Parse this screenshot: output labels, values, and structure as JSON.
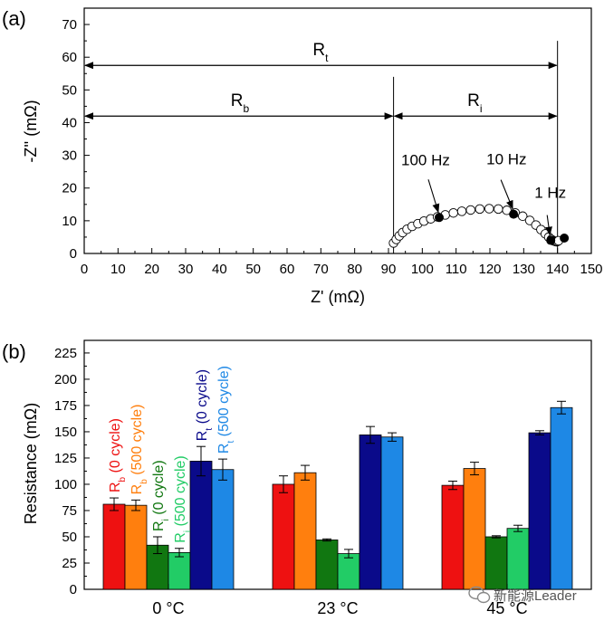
{
  "chart_data": [
    {
      "panel": "(a)",
      "type": "scatter",
      "xlabel": "Z' (mΩ)",
      "ylabel": "-Z'' (mΩ)",
      "xlim": [
        0,
        150
      ],
      "ylim": [
        0,
        75
      ],
      "xticks": [
        0,
        10,
        20,
        30,
        40,
        50,
        60,
        70,
        80,
        90,
        100,
        110,
        120,
        130,
        140,
        150
      ],
      "yticks": [
        0,
        10,
        20,
        30,
        40,
        50,
        60,
        70
      ],
      "series": [
        {
          "x": [
            91.5,
            92.3,
            93.2,
            94.2,
            95.5,
            97,
            98.7,
            100.5,
            102.5,
            104.5,
            106.8,
            109.2,
            111.7,
            114.3,
            117,
            119.8,
            122.5,
            125,
            127.5,
            129.7,
            131.8,
            133.6,
            135.1,
            136.4,
            137.4,
            138.2,
            138.8,
            139.3,
            139.7,
            140.0,
            140.3
          ],
          "y": [
            3.2,
            4.3,
            5.4,
            6.4,
            7.4,
            8.3,
            9.1,
            9.9,
            10.6,
            11.2,
            11.8,
            12.4,
            12.9,
            13.3,
            13.6,
            13.7,
            13.6,
            13.2,
            12.4,
            11.4,
            10.1,
            8.7,
            7.3,
            6.0,
            5.0,
            4.3,
            3.9,
            3.7,
            3.6,
            3.7,
            3.9
          ]
        }
      ],
      "highlights": [
        {
          "label": "100 Hz",
          "x": 105,
          "y": 11
        },
        {
          "label": "10 Hz",
          "x": 127,
          "y": 12
        },
        {
          "label": "1 Hz",
          "x": 138,
          "y": 4
        },
        {
          "label": "",
          "x": 142,
          "y": 4.7
        }
      ],
      "annotations": {
        "Rt": {
          "sym": "R",
          "sub": "t",
          "x_from": 0,
          "x_to": 140,
          "y": 57.5
        },
        "Rb": {
          "sym": "R",
          "sub": "b",
          "x_from": 0,
          "x_to": 91.5,
          "y": 42
        },
        "Ri": {
          "sym": "R",
          "sub": "i",
          "x_from": 91.5,
          "x_to": 140,
          "y": 42
        },
        "vlines": [
          91.5,
          140
        ]
      }
    },
    {
      "panel": "(b)",
      "type": "bar",
      "ylabel": "Resistance (mΩ)",
      "ylim": [
        0,
        237
      ],
      "yticks": [
        0,
        25,
        50,
        75,
        100,
        125,
        150,
        175,
        200,
        225
      ],
      "categories": [
        "0 °C",
        "23 °C",
        "45 °C"
      ],
      "series": [
        {
          "sym": "R",
          "sub": "b",
          "suffix": " (0 cycle)",
          "color": "#ee1111",
          "values": [
            81,
            100,
            99
          ],
          "errors": [
            6,
            8,
            4
          ]
        },
        {
          "sym": "R",
          "sub": "b",
          "suffix": " (500 cycle)",
          "color": "#ff7f0e",
          "values": [
            80,
            111,
            115
          ],
          "errors": [
            5,
            7,
            6
          ]
        },
        {
          "sym": "R",
          "sub": "i",
          "suffix": " (0 cycle)",
          "color": "#117711",
          "values": [
            42,
            47,
            50
          ],
          "errors": [
            8,
            1,
            1
          ]
        },
        {
          "sym": "R",
          "sub": "i",
          "suffix": " (500 cycle)",
          "color": "#22cc66",
          "values": [
            35,
            34,
            58
          ],
          "errors": [
            4,
            4,
            3
          ]
        },
        {
          "sym": "R",
          "sub": "t",
          "suffix": " (0 cycle)",
          "color": "#0a0a8a",
          "values": [
            122,
            147,
            149
          ],
          "errors": [
            14,
            8,
            2
          ]
        },
        {
          "sym": "R",
          "sub": "t",
          "suffix": " (500 cycle)",
          "color": "#1e88e5",
          "values": [
            114,
            145,
            173
          ],
          "errors": [
            10,
            4,
            6
          ]
        }
      ]
    }
  ],
  "watermark": "新能源Leader"
}
